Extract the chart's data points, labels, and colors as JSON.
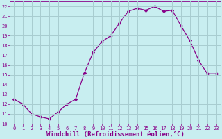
{
  "x": [
    0,
    1,
    2,
    3,
    4,
    5,
    6,
    7,
    8,
    9,
    10,
    11,
    12,
    13,
    14,
    15,
    16,
    17,
    18,
    19,
    20,
    21,
    22,
    23
  ],
  "y": [
    12.5,
    12.0,
    11.0,
    10.7,
    10.5,
    11.2,
    12.0,
    12.5,
    15.2,
    17.3,
    18.4,
    19.0,
    20.3,
    21.5,
    21.8,
    21.6,
    22.0,
    21.5,
    21.6,
    20.0,
    18.5,
    16.5,
    15.1,
    15.1
  ],
  "line_color": "#880088",
  "marker": "D",
  "marker_size": 2.2,
  "bg_color": "#c8eef0",
  "grid_color": "#a8ccd0",
  "xlabel": "Windchill (Refroidissement éolien,°C)",
  "xlim_min": -0.5,
  "xlim_max": 23.5,
  "ylim_min": 10,
  "ylim_max": 22.5,
  "yticks": [
    10,
    11,
    12,
    13,
    14,
    15,
    16,
    17,
    18,
    19,
    20,
    21,
    22
  ],
  "xticks": [
    0,
    1,
    2,
    3,
    4,
    5,
    6,
    7,
    8,
    9,
    10,
    11,
    12,
    13,
    14,
    15,
    16,
    17,
    18,
    19,
    20,
    21,
    22,
    23
  ],
  "tick_color": "#880088",
  "label_color": "#880088",
  "tick_fontsize": 5.0,
  "xlabel_fontsize": 6.5
}
